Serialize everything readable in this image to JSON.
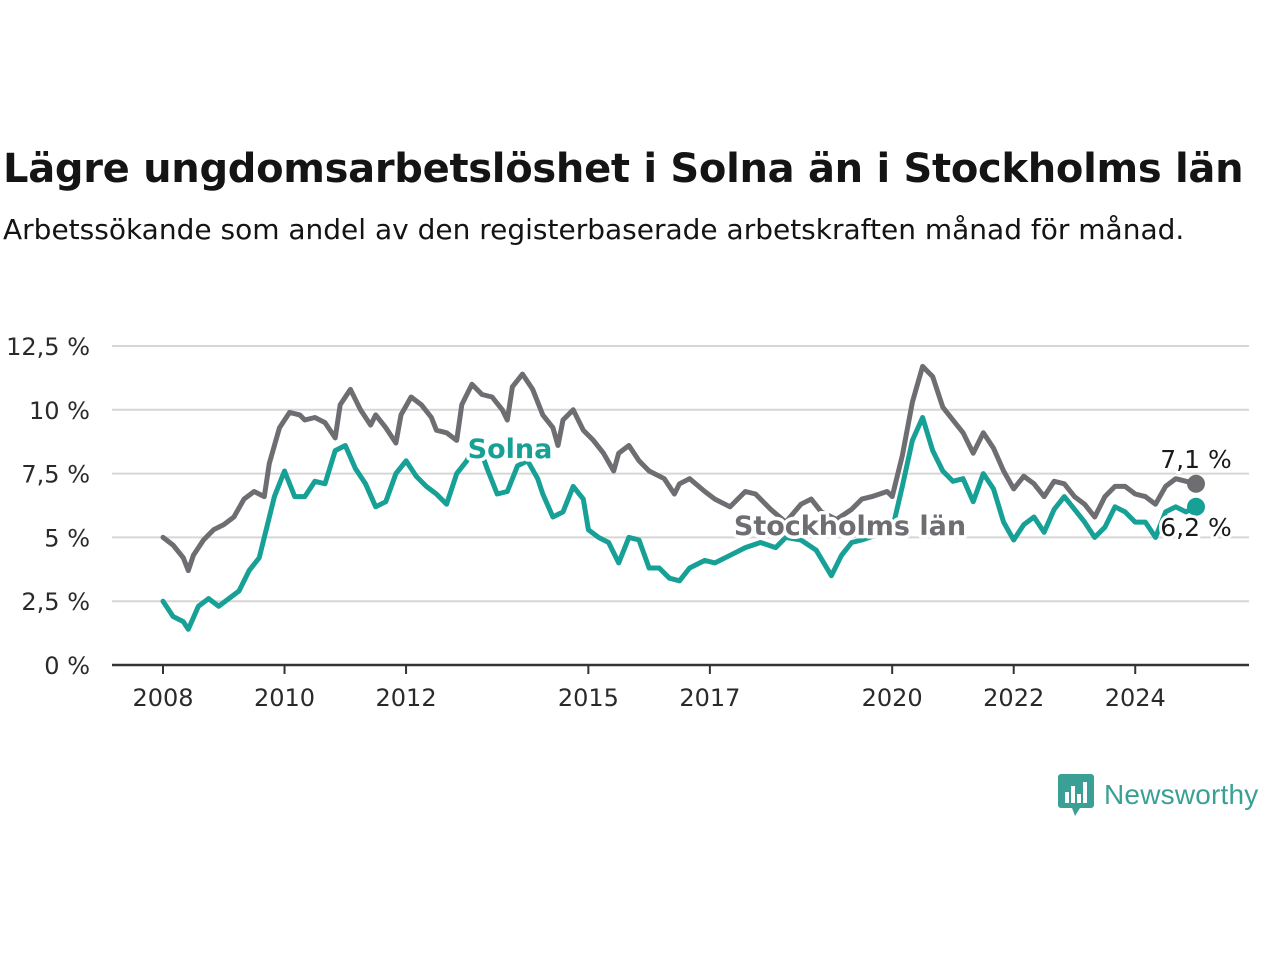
{
  "header": {
    "title": "Lägre ungdomsarbetslöshet i Solna än i Stockholms län",
    "subtitle": "Arbetssökande som andel av den registerbaserade arbetskraften månad för månad."
  },
  "brand": {
    "name": "Newsworthy",
    "icon": "newsworthy-chart-bubble-icon",
    "color": "#3aa096"
  },
  "chart_data": {
    "type": "line",
    "title": "Lägre ungdomsarbetslöshet i Solna än i Stockholms län",
    "subtitle": "Arbetssökande som andel av den registerbaserade arbetskraften månad för månad.",
    "xlabel": "",
    "ylabel": "",
    "ylim": [
      0,
      12.5
    ],
    "xlim": [
      "2008-01",
      "2025-07"
    ],
    "grid": true,
    "y_ticks": [
      {
        "value": 0,
        "label": "0 %"
      },
      {
        "value": 2.5,
        "label": "2,5 %"
      },
      {
        "value": 5,
        "label": "5 %"
      },
      {
        "value": 7.5,
        "label": "7,5 %"
      },
      {
        "value": 10,
        "label": "10 %"
      },
      {
        "value": 12.5,
        "label": "12,5 %"
      }
    ],
    "x_ticks": [
      {
        "date": "2008-01",
        "label": "2008"
      },
      {
        "date": "2010-01",
        "label": "2010"
      },
      {
        "date": "2012-01",
        "label": "2012"
      },
      {
        "date": "2015-01",
        "label": "2015"
      },
      {
        "date": "2017-01",
        "label": "2017"
      },
      {
        "date": "2020-01",
        "label": "2020"
      },
      {
        "date": "2022-01",
        "label": "2022"
      },
      {
        "date": "2024-01",
        "label": "2024"
      }
    ],
    "series": [
      {
        "name": "Stockholms län",
        "color": "#6e6d72",
        "end_label": "7,1 %",
        "points": [
          [
            "2008-01",
            5.0
          ],
          [
            "2008-03",
            4.7
          ],
          [
            "2008-05",
            4.2
          ],
          [
            "2008-06",
            3.7
          ],
          [
            "2008-07",
            4.3
          ],
          [
            "2008-09",
            4.9
          ],
          [
            "2008-11",
            5.3
          ],
          [
            "2009-01",
            5.5
          ],
          [
            "2009-03",
            5.8
          ],
          [
            "2009-05",
            6.5
          ],
          [
            "2009-07",
            6.8
          ],
          [
            "2009-09",
            6.6
          ],
          [
            "2009-10",
            7.9
          ],
          [
            "2009-12",
            9.3
          ],
          [
            "2010-02",
            9.9
          ],
          [
            "2010-04",
            9.8
          ],
          [
            "2010-05",
            9.6
          ],
          [
            "2010-07",
            9.7
          ],
          [
            "2010-09",
            9.5
          ],
          [
            "2010-11",
            8.9
          ],
          [
            "2010-12",
            10.2
          ],
          [
            "2011-02",
            10.8
          ],
          [
            "2011-04",
            10.0
          ],
          [
            "2011-06",
            9.4
          ],
          [
            "2011-07",
            9.8
          ],
          [
            "2011-09",
            9.3
          ],
          [
            "2011-11",
            8.7
          ],
          [
            "2011-12",
            9.8
          ],
          [
            "2012-02",
            10.5
          ],
          [
            "2012-04",
            10.2
          ],
          [
            "2012-06",
            9.7
          ],
          [
            "2012-07",
            9.2
          ],
          [
            "2012-09",
            9.1
          ],
          [
            "2012-11",
            8.8
          ],
          [
            "2012-12",
            10.2
          ],
          [
            "2013-02",
            11.0
          ],
          [
            "2013-04",
            10.6
          ],
          [
            "2013-06",
            10.5
          ],
          [
            "2013-08",
            10.0
          ],
          [
            "2013-09",
            9.6
          ],
          [
            "2013-10",
            10.9
          ],
          [
            "2013-12",
            11.4
          ],
          [
            "2014-02",
            10.8
          ],
          [
            "2014-04",
            9.8
          ],
          [
            "2014-06",
            9.3
          ],
          [
            "2014-07",
            8.6
          ],
          [
            "2014-08",
            9.6
          ],
          [
            "2014-10",
            10.0
          ],
          [
            "2014-12",
            9.2
          ],
          [
            "2015-02",
            8.8
          ],
          [
            "2015-04",
            8.3
          ],
          [
            "2015-06",
            7.6
          ],
          [
            "2015-07",
            8.3
          ],
          [
            "2015-09",
            8.6
          ],
          [
            "2015-11",
            8.0
          ],
          [
            "2016-01",
            7.6
          ],
          [
            "2016-04",
            7.3
          ],
          [
            "2016-06",
            6.7
          ],
          [
            "2016-07",
            7.1
          ],
          [
            "2016-09",
            7.3
          ],
          [
            "2016-12",
            6.8
          ],
          [
            "2017-02",
            6.5
          ],
          [
            "2017-05",
            6.2
          ],
          [
            "2017-08",
            6.8
          ],
          [
            "2017-10",
            6.7
          ],
          [
            "2018-01",
            6.1
          ],
          [
            "2018-04",
            5.6
          ],
          [
            "2018-07",
            6.3
          ],
          [
            "2018-09",
            6.5
          ],
          [
            "2018-11",
            6.0
          ],
          [
            "2019-02",
            5.7
          ],
          [
            "2019-05",
            6.1
          ],
          [
            "2019-07",
            6.5
          ],
          [
            "2019-09",
            6.6
          ],
          [
            "2019-12",
            6.8
          ],
          [
            "2020-01",
            6.6
          ],
          [
            "2020-03",
            8.2
          ],
          [
            "2020-05",
            10.3
          ],
          [
            "2020-07",
            11.7
          ],
          [
            "2020-09",
            11.3
          ],
          [
            "2020-11",
            10.1
          ],
          [
            "2021-01",
            9.6
          ],
          [
            "2021-03",
            9.1
          ],
          [
            "2021-05",
            8.3
          ],
          [
            "2021-07",
            9.1
          ],
          [
            "2021-09",
            8.5
          ],
          [
            "2021-11",
            7.6
          ],
          [
            "2022-01",
            6.9
          ],
          [
            "2022-03",
            7.4
          ],
          [
            "2022-05",
            7.1
          ],
          [
            "2022-07",
            6.6
          ],
          [
            "2022-09",
            7.2
          ],
          [
            "2022-11",
            7.1
          ],
          [
            "2023-01",
            6.6
          ],
          [
            "2023-03",
            6.3
          ],
          [
            "2023-05",
            5.8
          ],
          [
            "2023-07",
            6.6
          ],
          [
            "2023-09",
            7.0
          ],
          [
            "2023-11",
            7.0
          ],
          [
            "2024-01",
            6.7
          ],
          [
            "2024-03",
            6.6
          ],
          [
            "2024-05",
            6.3
          ],
          [
            "2024-07",
            7.0
          ],
          [
            "2024-09",
            7.3
          ],
          [
            "2025-01",
            7.1
          ]
        ]
      },
      {
        "name": "Solna",
        "color": "#16a096",
        "end_label": "6,2 %",
        "points": [
          [
            "2008-01",
            2.5
          ],
          [
            "2008-03",
            1.9
          ],
          [
            "2008-05",
            1.7
          ],
          [
            "2008-06",
            1.4
          ],
          [
            "2008-08",
            2.3
          ],
          [
            "2008-10",
            2.6
          ],
          [
            "2008-12",
            2.3
          ],
          [
            "2009-02",
            2.6
          ],
          [
            "2009-04",
            2.9
          ],
          [
            "2009-06",
            3.7
          ],
          [
            "2009-08",
            4.2
          ],
          [
            "2009-09",
            5.0
          ],
          [
            "2009-11",
            6.6
          ],
          [
            "2010-01",
            7.6
          ],
          [
            "2010-03",
            6.6
          ],
          [
            "2010-05",
            6.6
          ],
          [
            "2010-07",
            7.2
          ],
          [
            "2010-09",
            7.1
          ],
          [
            "2010-11",
            8.4
          ],
          [
            "2011-01",
            8.6
          ],
          [
            "2011-03",
            7.7
          ],
          [
            "2011-05",
            7.1
          ],
          [
            "2011-07",
            6.2
          ],
          [
            "2011-09",
            6.4
          ],
          [
            "2011-11",
            7.5
          ],
          [
            "2012-01",
            8.0
          ],
          [
            "2012-03",
            7.4
          ],
          [
            "2012-05",
            7.0
          ],
          [
            "2012-07",
            6.7
          ],
          [
            "2012-09",
            6.3
          ],
          [
            "2012-11",
            7.5
          ],
          [
            "2013-01",
            8.0
          ],
          [
            "2013-03",
            8.8
          ],
          [
            "2013-05",
            7.7
          ],
          [
            "2013-07",
            6.7
          ],
          [
            "2013-09",
            6.8
          ],
          [
            "2013-11",
            7.8
          ],
          [
            "2014-01",
            8.0
          ],
          [
            "2014-03",
            7.3
          ],
          [
            "2014-04",
            6.7
          ],
          [
            "2014-06",
            5.8
          ],
          [
            "2014-08",
            6.0
          ],
          [
            "2014-10",
            7.0
          ],
          [
            "2014-12",
            6.5
          ],
          [
            "2015-01",
            5.3
          ],
          [
            "2015-03",
            5.0
          ],
          [
            "2015-05",
            4.8
          ],
          [
            "2015-07",
            4.0
          ],
          [
            "2015-09",
            5.0
          ],
          [
            "2015-11",
            4.9
          ],
          [
            "2016-01",
            3.8
          ],
          [
            "2016-03",
            3.8
          ],
          [
            "2016-05",
            3.4
          ],
          [
            "2016-07",
            3.3
          ],
          [
            "2016-09",
            3.8
          ],
          [
            "2016-12",
            4.1
          ],
          [
            "2017-02",
            4.0
          ],
          [
            "2017-05",
            4.3
          ],
          [
            "2017-08",
            4.6
          ],
          [
            "2017-11",
            4.8
          ],
          [
            "2018-02",
            4.6
          ],
          [
            "2018-04",
            5.0
          ],
          [
            "2018-07",
            4.9
          ],
          [
            "2018-10",
            4.5
          ],
          [
            "2019-01",
            3.5
          ],
          [
            "2019-03",
            4.3
          ],
          [
            "2019-05",
            4.8
          ],
          [
            "2019-07",
            4.9
          ],
          [
            "2019-10",
            5.1
          ],
          [
            "2020-01",
            5.3
          ],
          [
            "2020-03",
            7.0
          ],
          [
            "2020-05",
            8.8
          ],
          [
            "2020-07",
            9.7
          ],
          [
            "2020-09",
            8.4
          ],
          [
            "2020-11",
            7.6
          ],
          [
            "2021-01",
            7.2
          ],
          [
            "2021-03",
            7.3
          ],
          [
            "2021-05",
            6.4
          ],
          [
            "2021-07",
            7.5
          ],
          [
            "2021-09",
            6.9
          ],
          [
            "2021-11",
            5.6
          ],
          [
            "2022-01",
            4.9
          ],
          [
            "2022-03",
            5.5
          ],
          [
            "2022-05",
            5.8
          ],
          [
            "2022-07",
            5.2
          ],
          [
            "2022-09",
            6.1
          ],
          [
            "2022-11",
            6.6
          ],
          [
            "2023-01",
            6.1
          ],
          [
            "2023-03",
            5.6
          ],
          [
            "2023-05",
            5.0
          ],
          [
            "2023-07",
            5.4
          ],
          [
            "2023-09",
            6.2
          ],
          [
            "2023-11",
            6.0
          ],
          [
            "2024-01",
            5.6
          ],
          [
            "2024-03",
            5.6
          ],
          [
            "2024-05",
            5.0
          ],
          [
            "2024-07",
            6.0
          ],
          [
            "2024-09",
            6.2
          ],
          [
            "2024-11",
            6.0
          ],
          [
            "2025-01",
            6.2
          ]
        ]
      }
    ]
  }
}
